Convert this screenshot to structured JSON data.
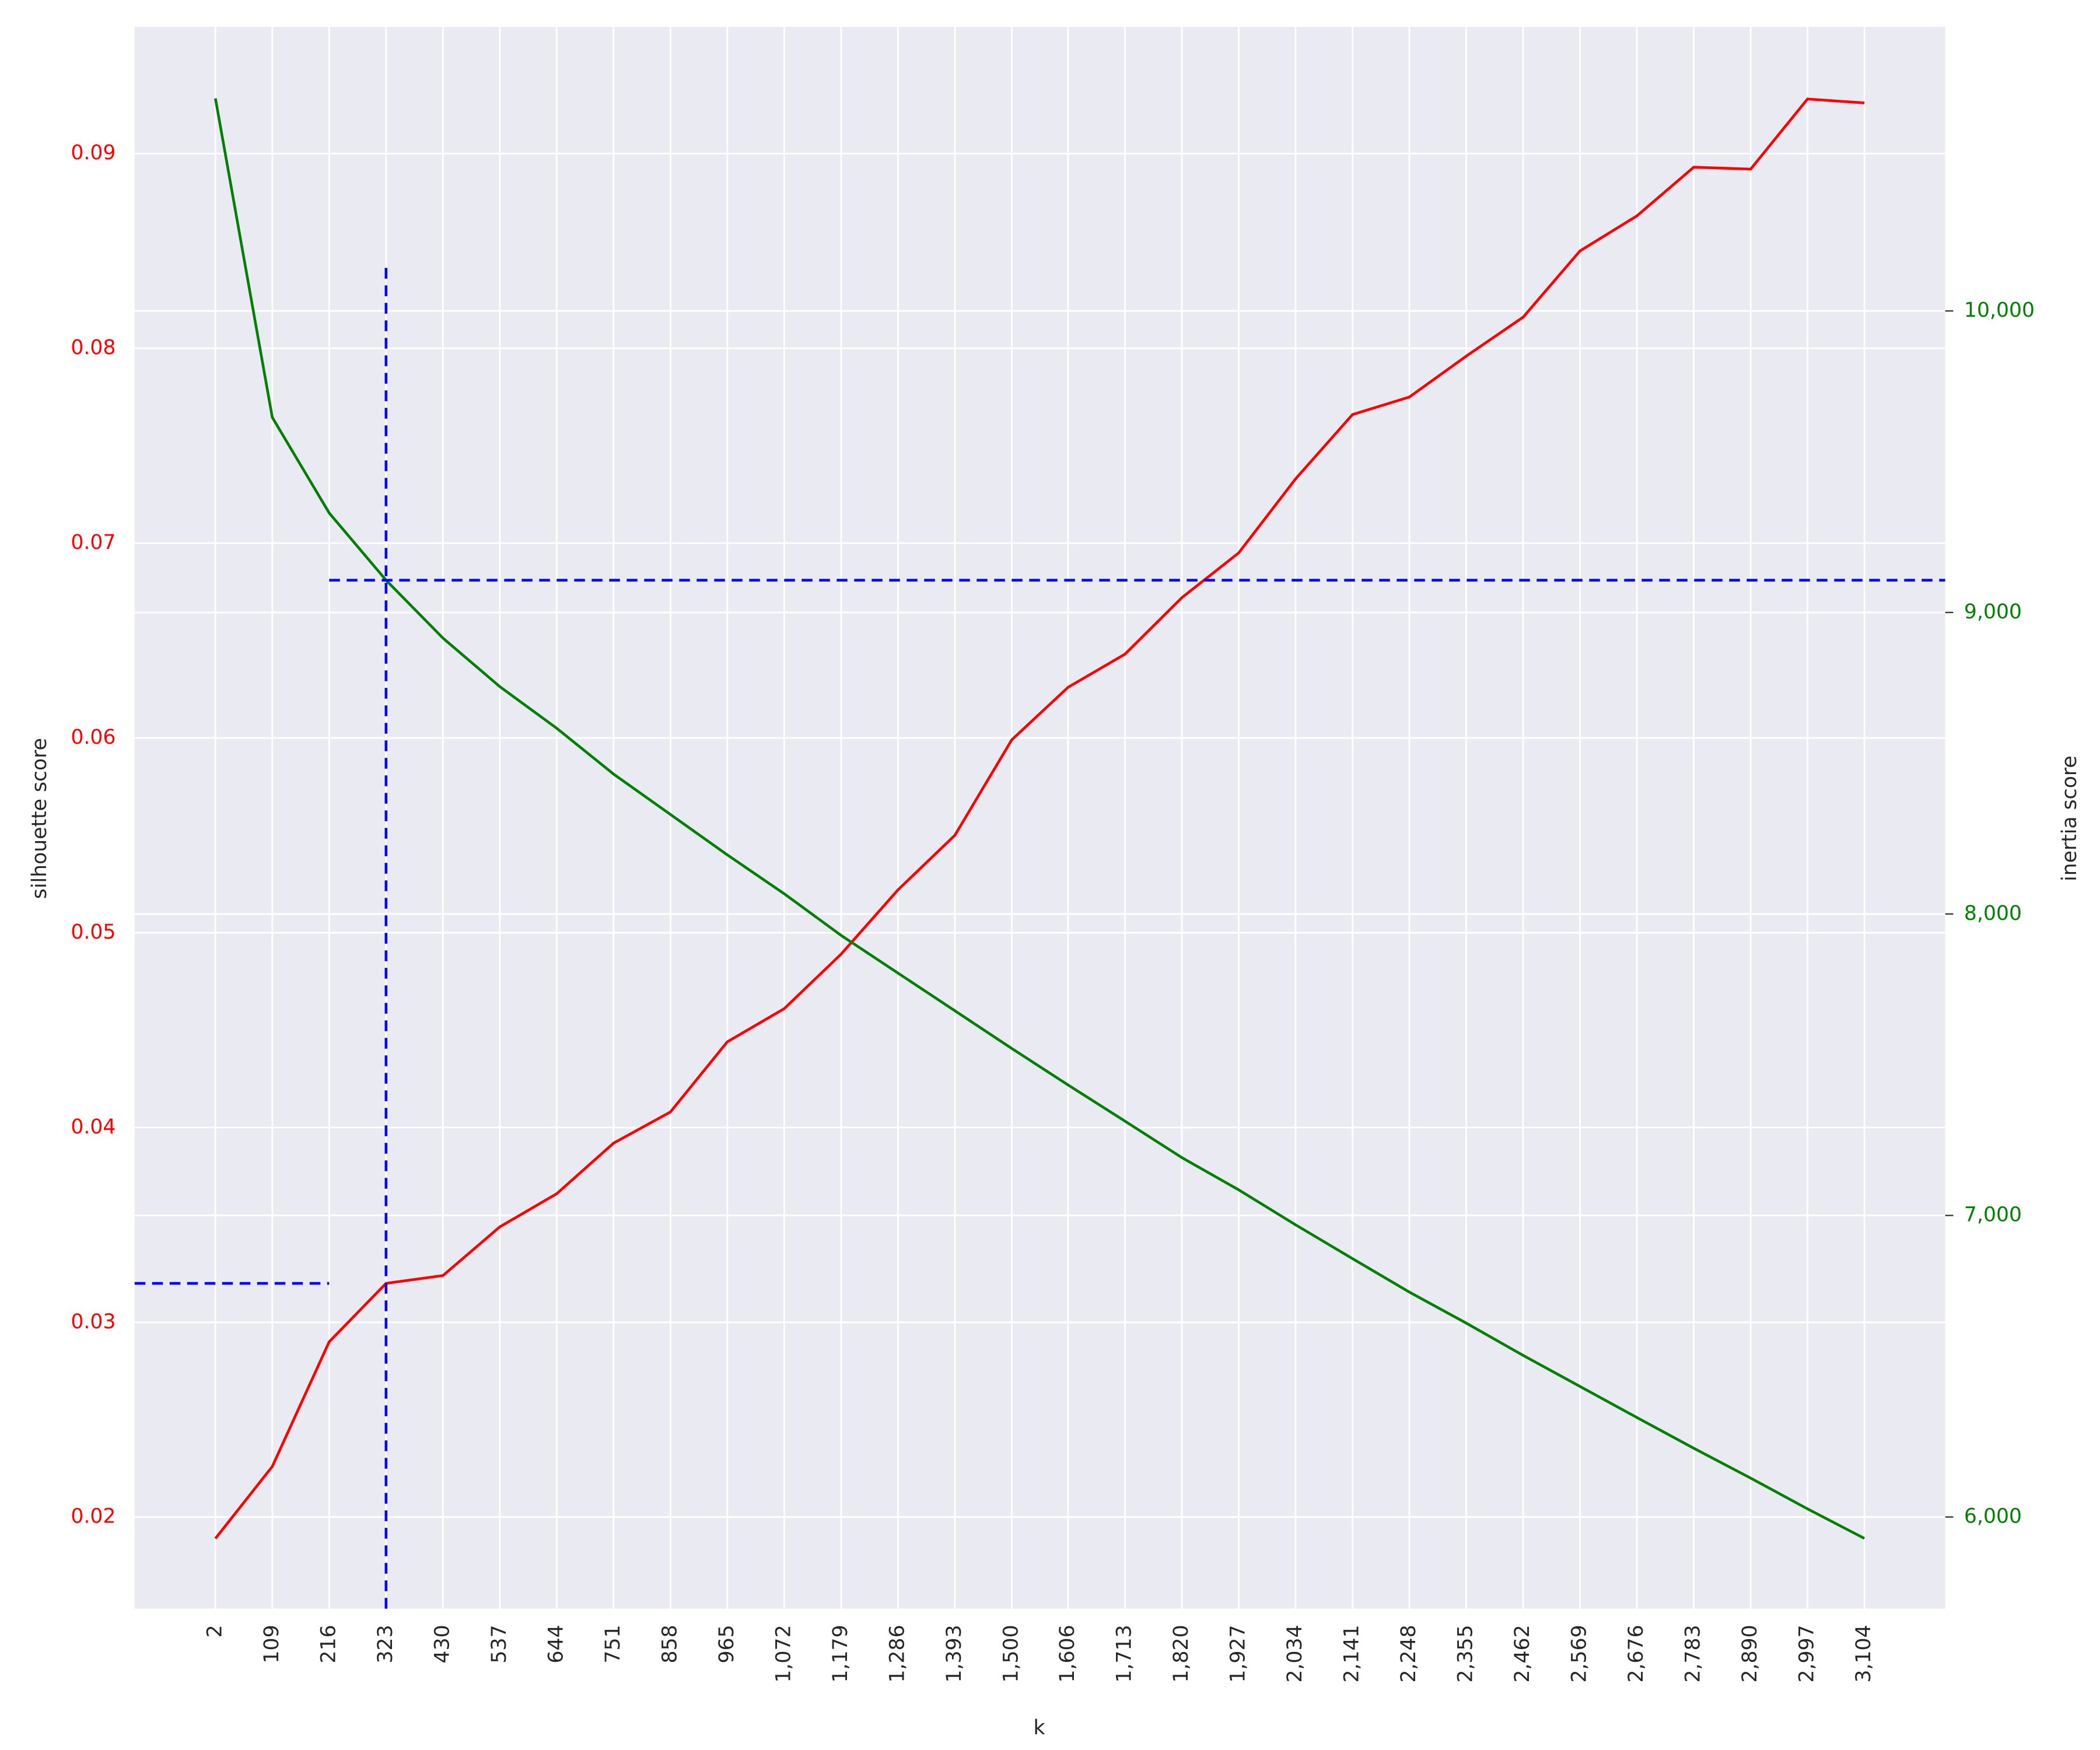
{
  "chart_data": {
    "type": "line",
    "x_label": "k",
    "y_label": "silhouette score",
    "y2_label": "inertia score",
    "x": [
      2,
      109,
      216,
      323,
      430,
      537,
      644,
      751,
      858,
      965,
      1072,
      1179,
      1286,
      1393,
      1500,
      1606,
      1713,
      1820,
      1927,
      2034,
      2141,
      2248,
      2355,
      2462,
      2569,
      2676,
      2783,
      2890,
      2997,
      3104
    ],
    "series": [
      {
        "color": "#ff0000",
        "axis": "y",
        "values": [
          0.0189,
          0.0226,
          0.029,
          0.032,
          0.0324,
          0.0349,
          0.0366,
          0.0392,
          0.0408,
          0.0444,
          0.0461,
          0.0489,
          0.0522,
          0.055,
          0.0599,
          0.0626,
          0.0643,
          0.0672,
          0.0695,
          0.0733,
          0.0766,
          0.0775,
          0.0796,
          0.0816,
          0.085,
          0.0868,
          0.0893,
          0.0892,
          0.0928,
          0.0926
        ]
      },
      {
        "color": "#008000",
        "axis": "y2",
        "values": [
          10705,
          9647,
          9330,
          9107,
          8915,
          8754,
          8616,
          8464,
          8330,
          8196,
          8067,
          7929,
          7804,
          7679,
          7554,
          7433,
          7313,
          7192,
          7085,
          6969,
          6857,
          6746,
          6643,
          6536,
          6433,
          6330,
          6228,
          6129,
          6027,
          5929
        ]
      }
    ],
    "xlim": [
      -150,
      3256
    ],
    "xticks": [
      2,
      109,
      216,
      323,
      430,
      537,
      644,
      751,
      858,
      965,
      {
        "value": 1072,
        "label": "1,072"
      },
      {
        "value": 1179,
        "label": "1,179"
      },
      {
        "value": 1286,
        "label": "1,286"
      },
      {
        "value": 1393,
        "label": "1,393"
      },
      {
        "value": 1500,
        "label": "1,500"
      },
      {
        "value": 1606,
        "label": "1,606"
      },
      {
        "value": 1713,
        "label": "1,713"
      },
      {
        "value": 1820,
        "label": "1,820"
      },
      {
        "value": 1927,
        "label": "1,927"
      },
      {
        "value": 2034,
        "label": "2,034"
      },
      {
        "value": 2141,
        "label": "2,141"
      },
      {
        "value": 2248,
        "label": "2,248"
      },
      {
        "value": 2355,
        "label": "2,355"
      },
      {
        "value": 2462,
        "label": "2,462"
      },
      {
        "value": 2569,
        "label": "2,569"
      },
      {
        "value": 2676,
        "label": "2,676"
      },
      {
        "value": 2783,
        "label": "2,783"
      },
      {
        "value": 2890,
        "label": "2,890"
      },
      {
        "value": 2997,
        "label": "2,997"
      },
      {
        "value": 3104,
        "label": "3,104"
      }
    ],
    "ylim": [
      0.0153,
      0.0965
    ],
    "yticks": [
      0.02,
      0.03,
      0.04,
      0.05,
      0.06,
      0.07,
      0.08,
      0.09
    ],
    "y_tick_color": "#ff0000",
    "y2lim": [
      5696,
      10942
    ],
    "y2ticks": [
      {
        "value": 6000,
        "label": "6,000"
      },
      {
        "value": 7000,
        "label": "7,000"
      },
      {
        "value": 8000,
        "label": "8,000"
      },
      {
        "value": 9000,
        "label": "9,000"
      },
      {
        "value": 10000,
        "label": "10,000"
      }
    ],
    "y2_tick_color": "#008000",
    "grid": true,
    "reference_color": "#0000ff",
    "reference_lines": [
      {
        "orient": "v",
        "x": 323,
        "ylim": [
          0.0153,
          0.0844
        ]
      },
      {
        "orient": "h",
        "axis": "y",
        "y": 0.032,
        "xlim": [
          -150,
          216
        ]
      },
      {
        "orient": "h",
        "axis": "y2",
        "y": 9107,
        "xlim": [
          216,
          3256
        ]
      }
    ]
  }
}
